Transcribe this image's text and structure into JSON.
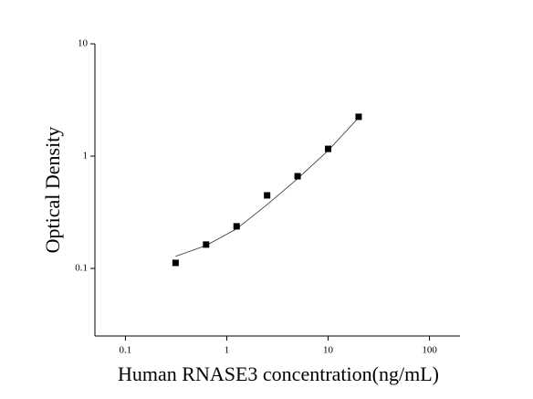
{
  "chart_data": {
    "type": "scatter",
    "x_label": "Human RNASE3 concentration(ng/mL)",
    "y_label": "Optical Density",
    "x": [
      0.3125,
      0.625,
      1.25,
      2.5,
      5,
      10,
      20
    ],
    "values": [
      0.112,
      0.163,
      0.237,
      0.447,
      0.662,
      1.16,
      2.24
    ],
    "color": "#000000",
    "fit": {
      "x": [
        0.3125,
        0.625,
        1.25,
        2.5,
        5,
        10,
        20
      ],
      "values": [
        0.128,
        0.16,
        0.225,
        0.37,
        0.63,
        1.12,
        2.2
      ],
      "color": "#333333"
    },
    "xlim": [
      0.05,
      200
    ],
    "ylim": [
      0.025,
      10
    ],
    "xticks": [
      0.1,
      1,
      10,
      100
    ],
    "yticks": [
      0.1,
      1,
      10
    ],
    "log_x": true,
    "log_y": true
  }
}
